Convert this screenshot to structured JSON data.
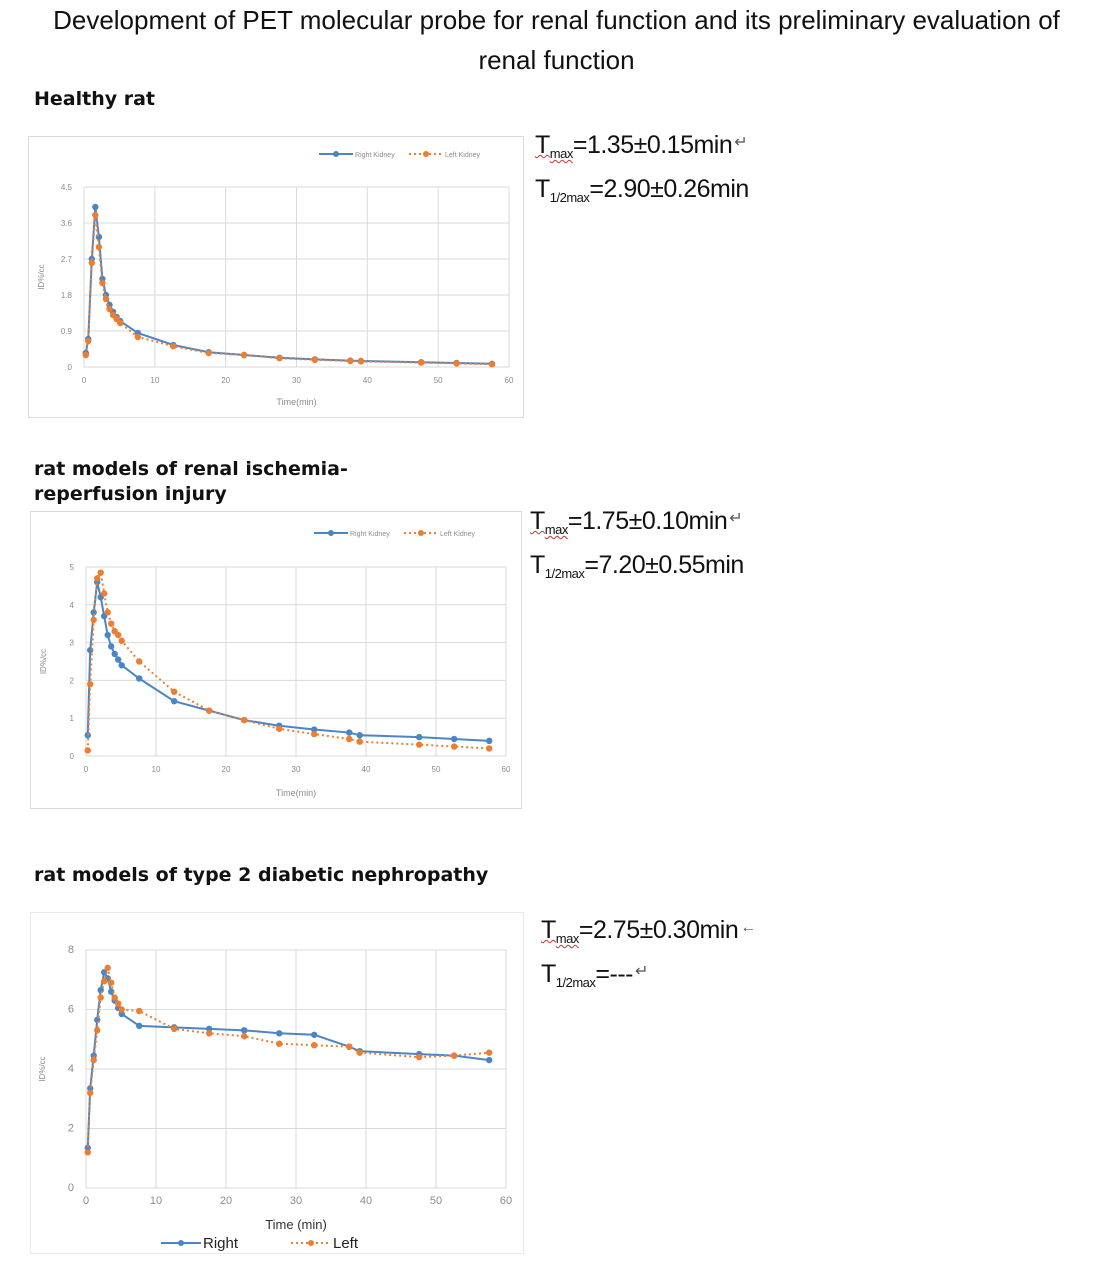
{
  "page": {
    "title_line1": "Development of PET molecular probe for renal function and its preliminary evaluation of",
    "title_line2": "renal function"
  },
  "sections": [
    {
      "heading_line1": "Healthy rat",
      "heading_line2": "",
      "stats": [
        {
          "label": "T",
          "sub": "max",
          "value": "=1.35±0.15min",
          "mark": "↵"
        },
        {
          "label": "T",
          "sub": "1/2max",
          "value": "=2.90±0.26min",
          "mark": ""
        }
      ]
    },
    {
      "heading_line1": "rat models of renal ischemia-",
      "heading_line2": "reperfusion injury",
      "stats": [
        {
          "label": "T",
          "sub": "max",
          "value": "=1.75±0.10min",
          "mark": "↵"
        },
        {
          "label": "T",
          "sub": "1/2max",
          "value": "=7.20±0.55min",
          "mark": ""
        }
      ]
    },
    {
      "heading_line1": "rat models of  type 2 diabetic nephropathy",
      "heading_line2": "",
      "stats": [
        {
          "label": "T",
          "sub": "max",
          "value": "=2.75±0.30min",
          "mark": "←"
        },
        {
          "label": "T",
          "sub": "1/2max",
          "value": "=---",
          "mark": "↵"
        }
      ]
    }
  ],
  "colors": {
    "right": "#4a86c5",
    "left": "#ed7d31",
    "grid": "#d9d9d9",
    "axis_text": "#8c8c8c"
  },
  "chart_data": [
    {
      "type": "line",
      "title": "",
      "xlabel": "Time(min)",
      "ylabel": "ID%/cc",
      "xlim": [
        0,
        60
      ],
      "ylim": [
        0,
        4.5
      ],
      "xticks": [
        0,
        10,
        20,
        30,
        40,
        50,
        60
      ],
      "yticks": [
        0,
        0.9,
        1.8,
        2.7,
        3.6,
        4.5
      ],
      "legend_position": "top",
      "series": [
        {
          "name": "Right Kidney",
          "style": "solid",
          "color": "#4a86c5",
          "x": [
            0.25,
            0.6,
            1.1,
            1.6,
            2.1,
            2.6,
            3.1,
            3.6,
            4.1,
            4.6,
            5.1,
            7.6,
            12.6,
            17.6,
            22.6,
            27.6,
            32.6,
            37.6,
            39.1,
            47.6,
            52.6,
            57.6
          ],
          "y": [
            0.35,
            0.7,
            2.7,
            4.0,
            3.25,
            2.2,
            1.8,
            1.55,
            1.38,
            1.25,
            1.15,
            0.85,
            0.55,
            0.37,
            0.3,
            0.23,
            0.19,
            0.16,
            0.15,
            0.12,
            0.1,
            0.08
          ]
        },
        {
          "name": "Left Kidney",
          "style": "dotted",
          "color": "#ed7d31",
          "x": [
            0.25,
            0.6,
            1.1,
            1.6,
            2.1,
            2.6,
            3.1,
            3.6,
            4.1,
            4.6,
            5.1,
            7.6,
            12.6,
            17.6,
            22.6,
            27.6,
            32.6,
            37.6,
            39.1,
            47.6,
            52.6,
            57.6
          ],
          "y": [
            0.3,
            0.65,
            2.6,
            3.8,
            3.0,
            2.1,
            1.7,
            1.45,
            1.3,
            1.2,
            1.1,
            0.75,
            0.52,
            0.35,
            0.3,
            0.22,
            0.18,
            0.15,
            0.14,
            0.11,
            0.09,
            0.07
          ]
        }
      ]
    },
    {
      "type": "line",
      "title": "",
      "xlabel": "Time(min)",
      "ylabel": "ID%/cc",
      "xlim": [
        0,
        60
      ],
      "ylim": [
        0,
        5
      ],
      "xticks": [
        0,
        10,
        20,
        30,
        40,
        50,
        60
      ],
      "yticks": [
        0,
        1,
        2,
        3,
        4,
        5
      ],
      "legend_position": "top",
      "series": [
        {
          "name": "Right Kidney",
          "style": "solid",
          "color": "#4a86c5",
          "x": [
            0.25,
            0.6,
            1.1,
            1.6,
            2.1,
            2.6,
            3.1,
            3.6,
            4.1,
            4.6,
            5.1,
            7.6,
            12.6,
            17.6,
            22.6,
            27.6,
            32.6,
            37.6,
            39.1,
            47.6,
            52.6,
            57.6
          ],
          "y": [
            0.55,
            2.8,
            3.8,
            4.6,
            4.2,
            3.7,
            3.2,
            2.9,
            2.7,
            2.55,
            2.4,
            2.05,
            1.45,
            1.2,
            0.95,
            0.8,
            0.7,
            0.62,
            0.55,
            0.5,
            0.45,
            0.4
          ]
        },
        {
          "name": "Left Kidney",
          "style": "dotted",
          "color": "#ed7d31",
          "x": [
            0.25,
            0.6,
            1.1,
            1.6,
            2.1,
            2.6,
            3.1,
            3.6,
            4.1,
            4.6,
            5.1,
            7.6,
            12.6,
            17.6,
            22.6,
            27.6,
            32.6,
            37.6,
            39.1,
            47.6,
            52.6,
            57.6
          ],
          "y": [
            0.15,
            1.9,
            3.6,
            4.7,
            4.85,
            4.3,
            3.8,
            3.5,
            3.3,
            3.2,
            3.05,
            2.5,
            1.7,
            1.2,
            0.95,
            0.72,
            0.58,
            0.45,
            0.38,
            0.3,
            0.25,
            0.2
          ]
        }
      ]
    },
    {
      "type": "line",
      "title": "",
      "xlabel": "Time (min)",
      "ylabel": "ID%/cc",
      "xlim": [
        0,
        60
      ],
      "ylim": [
        0,
        8
      ],
      "xticks": [
        0,
        10,
        20,
        30,
        40,
        50,
        60
      ],
      "yticks": [
        0,
        2,
        4,
        6,
        8
      ],
      "legend_position": "bottom",
      "series": [
        {
          "name": "Right",
          "style": "solid",
          "color": "#4a86c5",
          "x": [
            0.25,
            0.6,
            1.1,
            1.6,
            2.1,
            2.6,
            3.1,
            3.6,
            4.1,
            4.6,
            5.1,
            7.6,
            12.6,
            17.6,
            22.6,
            27.6,
            32.6,
            37.6,
            39.1,
            47.6,
            52.6,
            57.6
          ],
          "y": [
            1.35,
            3.35,
            4.45,
            5.65,
            6.65,
            7.25,
            7.05,
            6.6,
            6.3,
            6.05,
            5.85,
            5.45,
            5.4,
            5.35,
            5.3,
            5.2,
            5.15,
            4.75,
            4.6,
            4.5,
            4.45,
            4.3
          ]
        },
        {
          "name": "Left",
          "style": "dotted",
          "color": "#ed7d31",
          "x": [
            0.25,
            0.6,
            1.1,
            1.6,
            2.1,
            2.6,
            3.1,
            3.6,
            4.1,
            4.6,
            5.1,
            7.6,
            12.6,
            17.6,
            22.6,
            27.6,
            32.6,
            37.6,
            39.1,
            47.6,
            52.6,
            57.6
          ],
          "y": [
            1.2,
            3.2,
            4.3,
            5.3,
            6.4,
            6.95,
            7.4,
            6.9,
            6.4,
            6.2,
            6.0,
            5.95,
            5.35,
            5.2,
            5.1,
            4.85,
            4.8,
            4.75,
            4.55,
            4.4,
            4.45,
            4.55
          ]
        }
      ]
    }
  ]
}
